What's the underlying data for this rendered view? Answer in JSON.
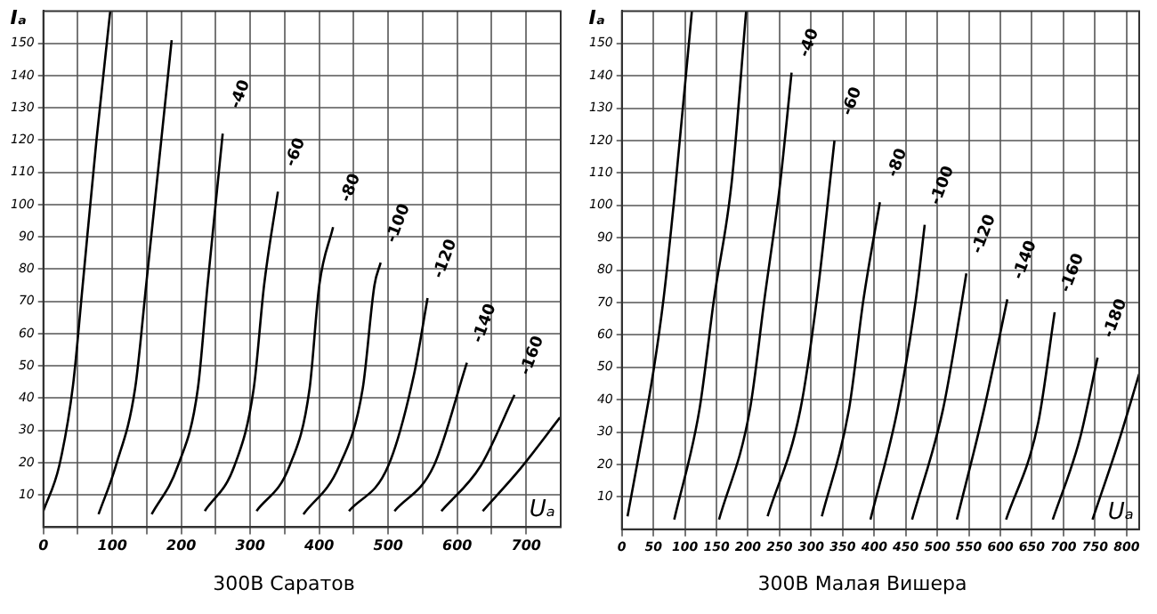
{
  "chart_data": [
    {
      "type": "line",
      "title": "300B Саратов",
      "xlabel": "Uₐ",
      "ylabel": "Iₐ",
      "xlim": [
        0,
        750
      ],
      "ylim": [
        0,
        160
      ],
      "xticks": [
        0,
        {
          "value": 50,
          "label": null
        },
        100,
        {
          "value": 150,
          "label": null
        },
        200,
        {
          "value": 250,
          "label": null
        },
        300,
        {
          "value": 350,
          "label": null
        },
        400,
        {
          "value": 450,
          "label": null
        },
        500,
        {
          "value": 550,
          "label": null
        },
        600,
        {
          "value": 650,
          "label": null
        },
        700
      ],
      "yticks": [
        10,
        20,
        30,
        40,
        50,
        60,
        70,
        80,
        90,
        100,
        110,
        120,
        130,
        140,
        150
      ],
      "grid": true,
      "legend": false,
      "marker": "none",
      "line_style": "solid",
      "series": [
        {
          "color": "#000000",
          "x": [
            0,
            23,
            43,
            57,
            77,
            97
          ],
          "values": [
            5,
            19,
            44,
            75,
            120,
            160
          ]
        },
        {
          "color": "#000000",
          "x": [
            80,
            105,
            133,
            149,
            186
          ],
          "values": [
            4,
            19,
            43,
            75,
            151
          ]
        },
        {
          "name": "-40",
          "color": "#000000",
          "x": [
            157,
            195,
            224,
            238,
            260
          ],
          "values": [
            4,
            19,
            43,
            75,
            122
          ]
        },
        {
          "name": "-60",
          "color": "#000000",
          "x": [
            234,
            277,
            305,
            320,
            340
          ],
          "values": [
            5,
            19,
            43,
            75,
            104
          ]
        },
        {
          "name": "-80",
          "color": "#000000",
          "x": [
            309,
            357,
            386,
            400,
            420
          ],
          "values": [
            5,
            19,
            43,
            75,
            93
          ]
        },
        {
          "name": "-100",
          "color": "#000000",
          "x": [
            377,
            429,
            463,
            480,
            489
          ],
          "values": [
            4,
            19,
            43,
            75,
            82
          ]
        },
        {
          "name": "-120",
          "color": "#000000",
          "x": [
            443,
            500,
            537,
            557
          ],
          "values": [
            5,
            19,
            47,
            71
          ]
        },
        {
          "name": "-140",
          "color": "#000000",
          "x": [
            509,
            566,
            614
          ],
          "values": [
            5,
            19,
            51
          ]
        },
        {
          "name": "-160",
          "color": "#000000",
          "x": [
            577,
            634,
            683
          ],
          "values": [
            5,
            19,
            41
          ]
        },
        {
          "color": "#000000",
          "x": [
            637,
            691,
            749
          ],
          "values": [
            5,
            18,
            34
          ]
        }
      ]
    },
    {
      "type": "line",
      "title": "300B Малая Вишера",
      "xlabel": "Uₐ",
      "ylabel": "Iₐ",
      "xlim": [
        0,
        820
      ],
      "ylim": [
        0,
        160
      ],
      "xticks": [
        0,
        50,
        100,
        150,
        200,
        250,
        300,
        350,
        400,
        450,
        500,
        550,
        600,
        650,
        700,
        750,
        800
      ],
      "yticks": [
        10,
        20,
        30,
        40,
        50,
        60,
        70,
        80,
        90,
        100,
        110,
        120,
        130,
        140,
        150
      ],
      "grid": true,
      "legend": false,
      "marker": "none",
      "line_style": "solid",
      "series": [
        {
          "color": "#000000",
          "x": [
            9,
            26,
            51,
            66,
            83,
            111
          ],
          "values": [
            4,
            22,
            50,
            71,
            102,
            160
          ]
        },
        {
          "color": "#000000",
          "x": [
            83,
            123,
            146,
            174,
            197
          ],
          "values": [
            3,
            37,
            71,
            107,
            160
          ]
        },
        {
          "name": "-40",
          "color": "#000000",
          "x": [
            154,
            203,
            226,
            251,
            269
          ],
          "values": [
            3,
            37,
            71,
            107,
            141
          ]
        },
        {
          "name": "-60",
          "color": "#000000",
          "x": [
            231,
            283,
            309,
            337
          ],
          "values": [
            4,
            37,
            71,
            120
          ]
        },
        {
          "name": "-80",
          "color": "#000000",
          "x": [
            317,
            360,
            383,
            409
          ],
          "values": [
            4,
            37,
            71,
            101
          ]
        },
        {
          "name": "-100",
          "color": "#000000",
          "x": [
            394,
            437,
            466,
            480
          ],
          "values": [
            3,
            37,
            71,
            94
          ]
        },
        {
          "name": "-120",
          "color": "#000000",
          "x": [
            460,
            509,
            537,
            546
          ],
          "values": [
            3,
            37,
            68,
            79
          ]
        },
        {
          "name": "-140",
          "color": "#000000",
          "x": [
            531,
            574,
            611
          ],
          "values": [
            3,
            37,
            71
          ]
        },
        {
          "name": "-160",
          "color": "#000000",
          "x": [
            609,
            660,
            686
          ],
          "values": [
            3,
            33,
            67
          ]
        },
        {
          "name": "-180",
          "color": "#000000",
          "x": [
            683,
            726,
            754
          ],
          "values": [
            3,
            28,
            53
          ]
        },
        {
          "color": "#000000",
          "x": [
            746,
            789,
            820
          ],
          "values": [
            3,
            28,
            48
          ]
        }
      ]
    }
  ]
}
